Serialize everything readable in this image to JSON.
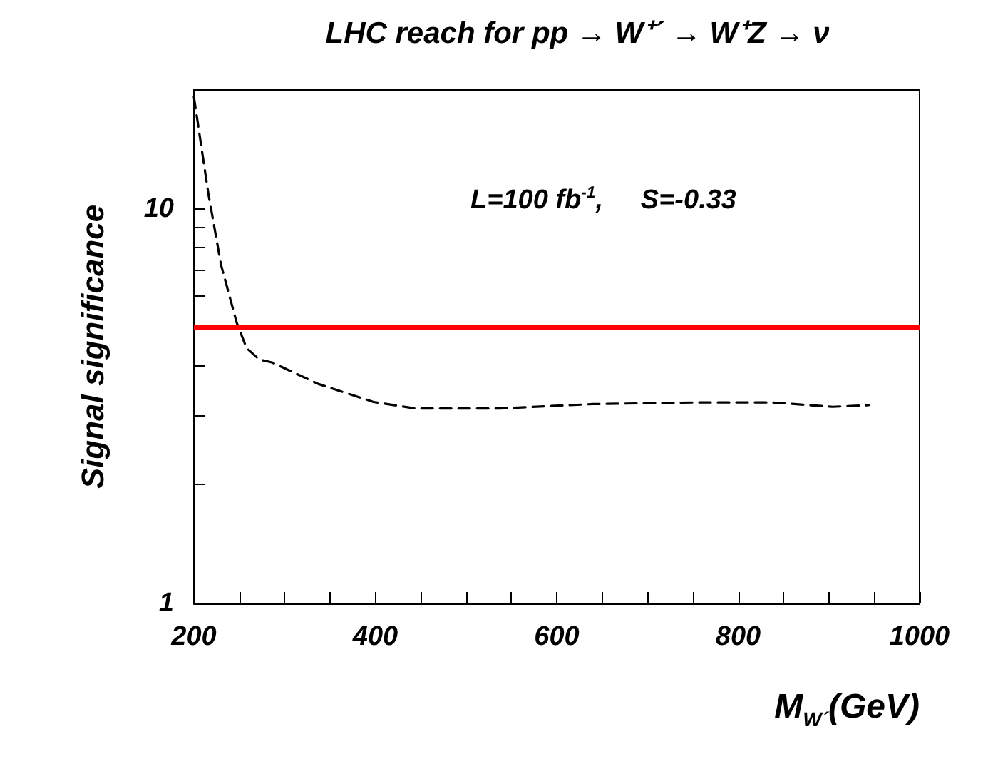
{
  "chart_data": {
    "type": "line",
    "title": "LHC reach for pp → W⁺´ → W⁺Z → ν",
    "xlabel": "M$_{W´}$(GeV)",
    "ylabel": "Signal significance",
    "annotations": [
      "L=100 fb$^{-1}$,     S=-0.33"
    ],
    "series": [
      {
        "color": "#000000",
        "x": [
          200,
          216,
          230,
          247,
          258,
          272,
          286,
          337,
          398,
          444,
          538,
          640,
          752,
          837,
          904,
          944
        ],
        "values": [
          19.2,
          10.9,
          7.2,
          5.16,
          4.44,
          4.15,
          4.08,
          3.6,
          3.24,
          3.12,
          3.12,
          3.2,
          3.23,
          3.23,
          3.15,
          3.18
        ]
      }
    ],
    "xlim": [
      200,
      1000
    ],
    "ylim": [
      1,
      20
    ],
    "xticks": [
      200,
      {
        "value": 250,
        "label": null
      },
      {
        "value": 300,
        "label": null
      },
      {
        "value": 350,
        "label": null
      },
      400,
      {
        "value": 450,
        "label": null
      },
      {
        "value": 500,
        "label": null
      },
      {
        "value": 550,
        "label": null
      },
      600,
      {
        "value": 650,
        "label": null
      },
      {
        "value": 700,
        "label": null
      },
      {
        "value": 750,
        "label": null
      },
      800,
      {
        "value": 850,
        "label": null
      },
      {
        "value": 900,
        "label": null
      },
      {
        "value": 950,
        "label": null
      },
      1000
    ],
    "yticks": [
      1,
      {
        "value": 2,
        "label": null
      },
      {
        "value": 3,
        "label": null
      },
      {
        "value": 4,
        "label": null
      },
      {
        "value": 5,
        "label": null
      },
      {
        "value": 6,
        "label": null
      },
      {
        "value": 7,
        "label": null
      },
      {
        "value": 8,
        "label": null
      },
      {
        "value": 9,
        "label": null
      },
      10,
      {
        "value": 20,
        "label": null
      }
    ],
    "log": "y",
    "grid": false,
    "marker": "none",
    "line_style": "dashed",
    "ref_lines": [
      {
        "axis": "y",
        "value": 5,
        "color": "#ff0000"
      }
    ]
  }
}
